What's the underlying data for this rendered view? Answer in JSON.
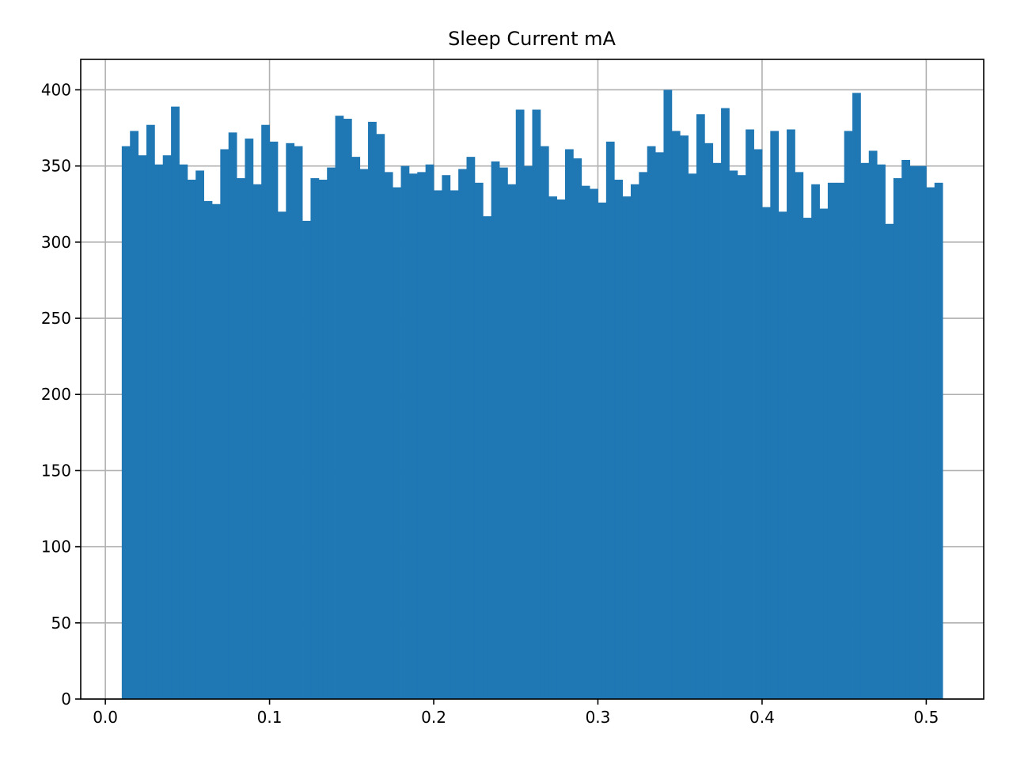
{
  "chart_data": {
    "type": "bar",
    "title": "Sleep Current mA",
    "xlabel": "",
    "ylabel": "",
    "xlim": [
      -0.015,
      0.535
    ],
    "ylim": [
      0,
      420
    ],
    "grid": true,
    "bar_color": "#1f77b4",
    "grid_color": "#b0b0b0",
    "x_ticks": [
      "0.0",
      "0.1",
      "0.2",
      "0.3",
      "0.4",
      "0.5"
    ],
    "y_ticks": [
      "0",
      "50",
      "100",
      "150",
      "200",
      "250",
      "300",
      "350",
      "400"
    ],
    "bin_start": 0.01,
    "bin_width": 0.005,
    "values": [
      363,
      373,
      357,
      377,
      351,
      357,
      389,
      351,
      341,
      347,
      327,
      325,
      361,
      372,
      342,
      368,
      338,
      377,
      366,
      320,
      365,
      363,
      314,
      342,
      341,
      349,
      383,
      381,
      356,
      348,
      379,
      371,
      346,
      336,
      350,
      345,
      346,
      351,
      334,
      344,
      334,
      348,
      356,
      339,
      317,
      353,
      349,
      338,
      387,
      350,
      387,
      363,
      330,
      328,
      361,
      355,
      337,
      335,
      326,
      366,
      341,
      330,
      338,
      346,
      363,
      359,
      400,
      373,
      370,
      345,
      384,
      365,
      352,
      388,
      347,
      344,
      374,
      361,
      323,
      373,
      320,
      374,
      346,
      316,
      338,
      322,
      339,
      339,
      373,
      398,
      352,
      360,
      351,
      312,
      342,
      354,
      350,
      350,
      336,
      339
    ]
  }
}
